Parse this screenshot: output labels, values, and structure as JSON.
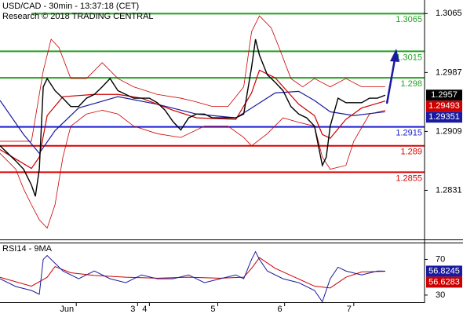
{
  "chart_data": [
    {
      "type": "line",
      "title": "USD/CAD - 30min - 13:37:18 (CET)",
      "subtitle": "Research © 2018 TRADING CENTRAL",
      "xlim": [
        0,
        108
      ],
      "ylim": [
        1.2766,
        1.3083
      ],
      "yticks": [
        1.3065,
        1.2987,
        1.2909,
        1.2831
      ],
      "levels": [
        {
          "value": 1.3065,
          "color": "#22a022"
        },
        {
          "value": 1.3015,
          "color": "#22a022"
        },
        {
          "value": 1.298,
          "color": "#22a022"
        },
        {
          "value": 1.2915,
          "color": "#1a1ad0"
        },
        {
          "value": 1.289,
          "color": "#dd0000"
        },
        {
          "value": 1.2855,
          "color": "#dd0000"
        }
      ],
      "series": [
        {
          "color": "#cc0000",
          "width": 0.8,
          "x": [
            0,
            8,
            11,
            13,
            15,
            18,
            22,
            26,
            30,
            34,
            40,
            46,
            50,
            54,
            58,
            62,
            64,
            66,
            69,
            71,
            74,
            77,
            80,
            84,
            88,
            92,
            98
          ],
          "values": [
            1.2896,
            1.2896,
            1.2989,
            1.3031,
            1.302,
            1.2979,
            1.2979,
            1.3,
            1.2979,
            1.2968,
            1.2958,
            1.2953,
            1.2948,
            1.2942,
            1.2942,
            1.2968,
            1.3041,
            1.3062,
            1.3046,
            1.302,
            1.2979,
            1.2968,
            1.2979,
            1.2968,
            1.2979,
            1.2968,
            1.2968
          ]
        },
        {
          "color": "#cc0000",
          "width": 0.8,
          "x": [
            0,
            4,
            6,
            8,
            10,
            12,
            14,
            16,
            18,
            22,
            26,
            30,
            34,
            40,
            46,
            52,
            58,
            62,
            64,
            68,
            72,
            76,
            80,
            82,
            84,
            88,
            90,
            94,
            98
          ],
          "values": [
            1.288,
            1.2859,
            1.2833,
            1.2812,
            1.2792,
            1.2781,
            1.2812,
            1.2875,
            1.2916,
            1.2932,
            1.2937,
            1.2932,
            1.2916,
            1.2906,
            1.2901,
            1.2916,
            1.2916,
            1.2901,
            1.289,
            1.2906,
            1.2927,
            1.2921,
            1.2916,
            1.2875,
            1.2859,
            1.2864,
            1.2896,
            1.2932,
            1.2937
          ]
        },
        {
          "color": "#1a1aa0",
          "width": 1.2,
          "last_label": true,
          "x": [
            0,
            6,
            10,
            14,
            20,
            30,
            40,
            50,
            60,
            64,
            70,
            76,
            80,
            84,
            90,
            98
          ],
          "values": [
            1.295,
            1.2905,
            1.288,
            1.291,
            1.294,
            1.2955,
            1.2945,
            1.2932,
            1.2927,
            1.294,
            1.296,
            1.2962,
            1.295,
            1.2935,
            1.293,
            1.29351
          ]
        },
        {
          "color": "#cc0000",
          "width": 1.2,
          "last_label": true,
          "x": [
            0,
            8,
            10,
            12,
            16,
            24,
            30,
            36,
            44,
            50,
            60,
            64,
            66,
            70,
            76,
            80,
            82,
            84,
            88,
            92,
            98
          ],
          "values": [
            1.2885,
            1.286,
            1.2875,
            1.293,
            1.2955,
            1.2958,
            1.2958,
            1.2953,
            1.2937,
            1.2927,
            1.2925,
            1.296,
            1.299,
            1.298,
            1.2945,
            1.293,
            1.2905,
            1.29,
            1.2925,
            1.294,
            1.29493
          ]
        },
        {
          "color": "#000000",
          "width": 1.4,
          "last_label": true,
          "x": [
            0,
            2,
            4,
            6,
            8,
            9,
            10,
            11,
            12,
            14,
            16,
            18,
            20,
            22,
            24,
            26,
            28,
            30,
            32,
            34,
            36,
            38,
            40,
            42,
            44,
            46,
            48,
            50,
            52,
            54,
            56,
            58,
            60,
            62,
            64,
            65,
            66,
            68,
            70,
            72,
            74,
            76,
            78,
            80,
            82,
            83,
            84,
            86,
            88,
            90,
            92,
            94,
            96,
            98
          ],
          "values": [
            1.289,
            1.288,
            1.287,
            1.2859,
            1.2838,
            1.2823,
            1.2859,
            1.2968,
            1.2979,
            1.2963,
            1.2953,
            1.2942,
            1.2942,
            1.2953,
            1.2958,
            1.2968,
            1.2979,
            1.2963,
            1.2958,
            1.2953,
            1.2953,
            1.2953,
            1.2947,
            1.2937,
            1.2922,
            1.2911,
            1.2927,
            1.2932,
            1.2932,
            1.2927,
            1.2927,
            1.2927,
            1.2927,
            1.2932,
            1.2994,
            1.3031,
            1.301,
            1.2984,
            1.2974,
            1.2963,
            1.2942,
            1.2932,
            1.2927,
            1.2916,
            1.2864,
            1.2875,
            1.2916,
            1.2953,
            1.2947,
            1.2947,
            1.2947,
            1.2953,
            1.2953,
            1.2957
          ]
        }
      ]
    },
    {
      "type": "line",
      "title": "RSI14 - 9MA",
      "xlim": [
        0,
        108
      ],
      "ylim": [
        22,
        88
      ],
      "yticks": [
        70,
        30
      ],
      "xticks": [
        {
          "value": 19.4,
          "label": "Jun"
        },
        {
          "value": 35,
          "label": "3"
        },
        {
          "value": 38,
          "label": "4"
        },
        {
          "value": 55.4,
          "label": "5"
        },
        {
          "value": 72.4,
          "label": "6"
        },
        {
          "value": 90,
          "label": "7"
        }
      ],
      "series": [
        {
          "color": "#cc0000",
          "width": 1,
          "last_label": true,
          "x": [
            0,
            8,
            12,
            14,
            18,
            24,
            32,
            40,
            48,
            56,
            62,
            64,
            66,
            70,
            76,
            80,
            84,
            88,
            92,
            98
          ],
          "values": [
            50,
            40,
            50,
            62,
            55,
            52,
            50,
            49,
            50,
            49,
            50,
            60,
            72,
            60,
            48,
            40,
            38,
            50,
            56,
            56.6283
          ]
        },
        {
          "color": "#1a1aa0",
          "width": 1,
          "last_label": true,
          "x": [
            0,
            4,
            8,
            10,
            11,
            12,
            14,
            16,
            20,
            24,
            28,
            32,
            36,
            40,
            44,
            48,
            52,
            56,
            60,
            62,
            64,
            65,
            66,
            68,
            72,
            76,
            80,
            82,
            84,
            86,
            88,
            92,
            96,
            98
          ],
          "values": [
            48.3,
            39.6,
            35.2,
            30.9,
            70,
            74.3,
            65.7,
            57,
            48.3,
            57,
            48.3,
            43.9,
            52.6,
            48.3,
            48.3,
            52.6,
            43.9,
            48.3,
            52.6,
            48.3,
            70,
            78.7,
            70,
            57,
            48.3,
            43.9,
            35.2,
            22.5,
            48.3,
            61.3,
            57,
            52.6,
            57,
            56.8245
          ]
        }
      ]
    }
  ]
}
